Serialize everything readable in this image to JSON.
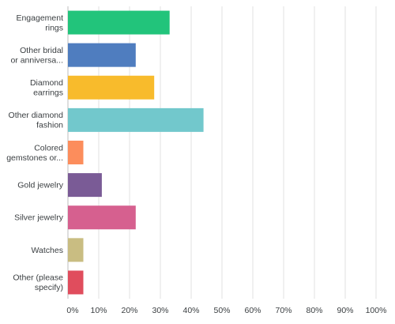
{
  "chart_data": {
    "type": "bar",
    "orientation": "horizontal",
    "title": "",
    "xlabel": "",
    "ylabel": "",
    "xlim": [
      0,
      100
    ],
    "grid": true,
    "legend": "none",
    "categories": [
      {
        "label": [
          "Engagement",
          "rings"
        ],
        "value": 33,
        "color": "#22c47b"
      },
      {
        "label": [
          "Other bridal",
          "or anniversa..."
        ],
        "value": 22,
        "color": "#4f7dbf"
      },
      {
        "label": [
          "Diamond",
          "earrings"
        ],
        "value": 28,
        "color": "#f8bb2c"
      },
      {
        "label": [
          "Other diamond",
          "fashion"
        ],
        "value": 44,
        "color": "#72c8cc"
      },
      {
        "label": [
          "Colored",
          "gemstones or..."
        ],
        "value": 5,
        "color": "#fc8d5c"
      },
      {
        "label": [
          "Gold jewelry"
        ],
        "value": 11,
        "color": "#7a5b96"
      },
      {
        "label": [
          "Silver jewelry"
        ],
        "value": 22,
        "color": "#d6608f"
      },
      {
        "label": [
          "Watches"
        ],
        "value": 5,
        "color": "#c9bd82"
      },
      {
        "label": [
          "Other (please",
          "specify)"
        ],
        "value": 5,
        "color": "#e04d5d"
      }
    ],
    "ticks": [
      "0%",
      "10%",
      "20%",
      "30%",
      "40%",
      "50%",
      "60%",
      "70%",
      "80%",
      "90%",
      "100%"
    ]
  }
}
